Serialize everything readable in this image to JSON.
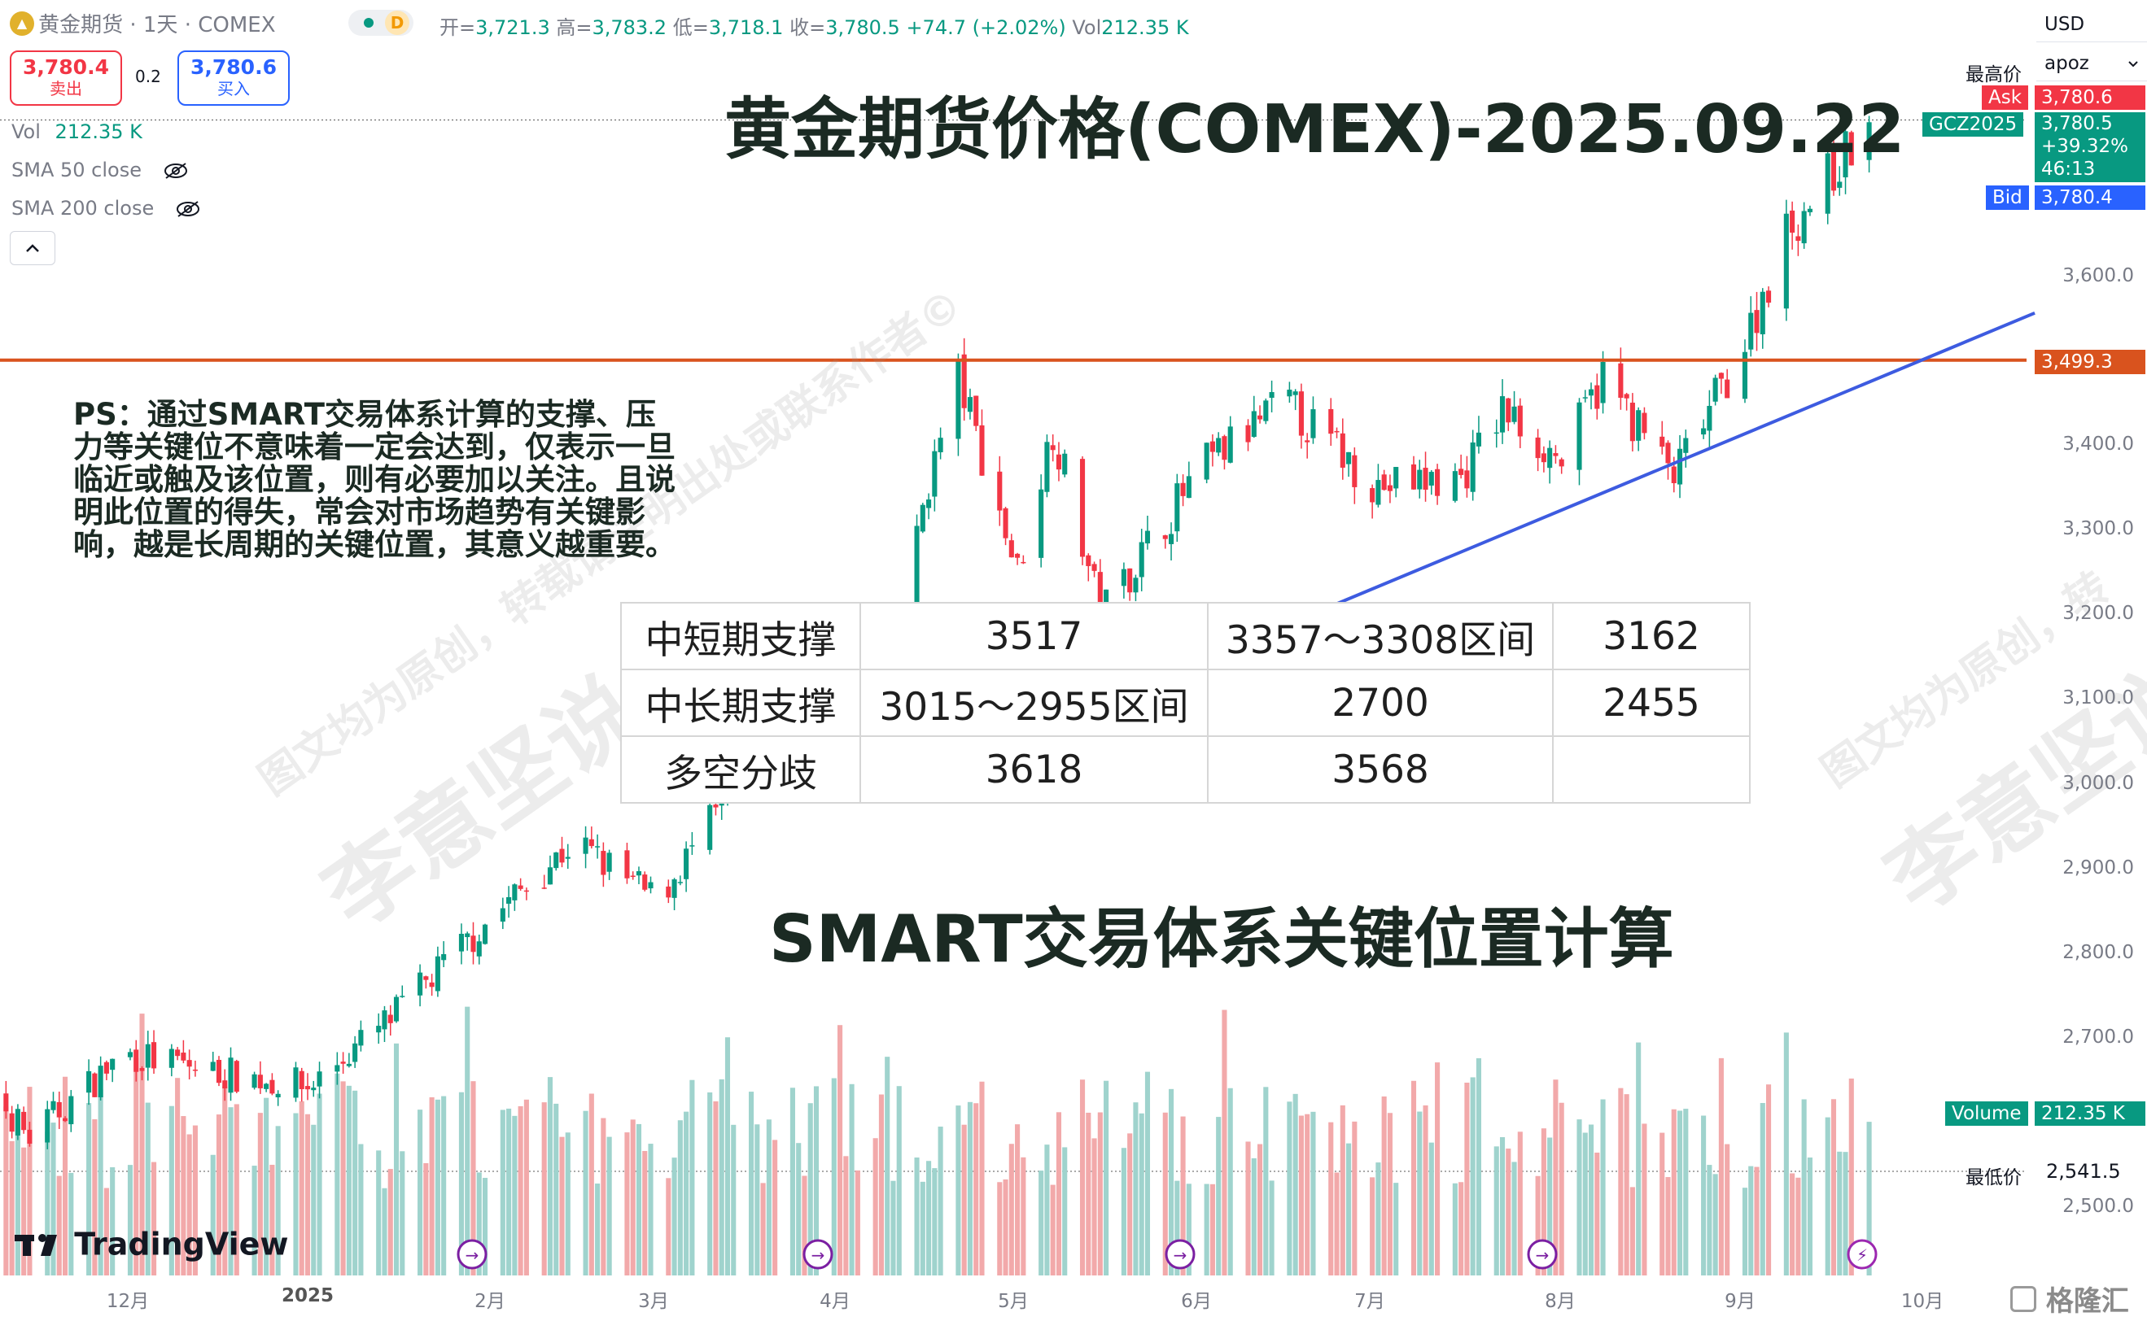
{
  "header": {
    "symbol_name": "黄金期货 · 1天 · COMEX",
    "badge": "D",
    "ohlc": [
      {
        "k": "开=",
        "v": "3,721.3"
      },
      {
        "k": "高=",
        "v": "3,783.2"
      },
      {
        "k": "低=",
        "v": "3,718.1"
      },
      {
        "k": "收=",
        "v": "3,780.5"
      },
      {
        "k": "",
        "v": "+74.7 (+2.02%)"
      },
      {
        "k": "Vol",
        "v": "212.35 K"
      }
    ]
  },
  "trade": {
    "sell_price": "3,780.4",
    "sell_label": "卖出",
    "spread": "0.2",
    "buy_price": "3,780.6",
    "buy_label": "买入"
  },
  "indicators": {
    "vol_label": "Vol",
    "vol_value": "212.35 K",
    "sma50": "SMA 50 close",
    "sma200": "SMA 200 close"
  },
  "top_right": {
    "currency": "USD",
    "account": "apoz"
  },
  "price_tags": {
    "high_label": "最高价",
    "ask_label": "Ask",
    "ask_value": "3,780.6",
    "symbol_tag": "GCZ2025",
    "last_value": "3,780.5",
    "change_pct": "+39.32%",
    "countdown": "46:13",
    "bid_label": "Bid",
    "bid_value": "3,780.4",
    "level_value": "3,499.3",
    "volume_label": "Volume",
    "volume_value": "212.35 K",
    "low_label": "最低价",
    "low_value": "2,541.5"
  },
  "overlay": {
    "title": "黄金期货价格(COMEX)-2025.09.22",
    "subtitle": "SMART交易体系关键位置计算",
    "note": "PS：通过SMART交易体系计算的支撑、压力等关键位不意味着一定会达到，仅表示一旦临近或触及该位置，则有必要加以关注。且说明此位置的得失，常会对市场趋势有关键影响，越是长周期的关键位置，其意义越重要。",
    "table": [
      [
        "中短期支撑",
        "3517",
        "3357～3308区间",
        "3162"
      ],
      [
        "中长期支撑",
        "3015～2955区间",
        "2700",
        "2455"
      ],
      [
        "多空分歧",
        "3618",
        "3568",
        ""
      ]
    ],
    "watermark_a": "图文均为原创，转载请注明出处或联系作者©",
    "watermark_b": "李意坚说",
    "watermark_c": "图文均为原创，转",
    "watermark_d": "李意坚说",
    "logo": "TradingView",
    "corner_logo": "格隆汇"
  },
  "colors": {
    "up": "#089981",
    "down": "#f23645",
    "vol_up": "#9fd3cd",
    "vol_down": "#f2a9aa",
    "level_line": "#d9531e",
    "trend_line": "#3d5be0",
    "blue_tag": "#2962ff"
  },
  "chart_data": {
    "type": "candlestick",
    "y_axis_ticks": [
      "3,600.0",
      "3,400.0",
      "3,300.0",
      "3,200.0",
      "3,100.0",
      "3,000.0",
      "2,900.0",
      "2,800.0",
      "2,700.0",
      "2,500.0"
    ],
    "x_axis_ticks": [
      "12月",
      "2025",
      "2月",
      "3月",
      "4月",
      "5月",
      "6月",
      "7月",
      "8月",
      "9月",
      "10月"
    ],
    "ylim": [
      2430,
      3830
    ],
    "last_price": 3780.5,
    "horizontal_level": 3499.3,
    "trend_line": {
      "from": {
        "date": "2025-04-09",
        "price": 2990
      },
      "to": {
        "date": "2025-10-20",
        "price": 3555
      }
    },
    "anchors": [
      {
        "date": "2024-11-01",
        "close": 2700
      },
      {
        "date": "2024-11-15",
        "close": 2580
      },
      {
        "date": "2024-12-01",
        "close": 2680
      },
      {
        "date": "2024-12-15",
        "close": 2660
      },
      {
        "date": "2025-01-01",
        "close": 2640
      },
      {
        "date": "2025-01-15",
        "close": 2720
      },
      {
        "date": "2025-02-01",
        "close": 2840
      },
      {
        "date": "2025-02-15",
        "close": 2930
      },
      {
        "date": "2025-03-01",
        "close": 2860
      },
      {
        "date": "2025-03-15",
        "close": 3000
      },
      {
        "date": "2025-04-01",
        "close": 3150
      },
      {
        "date": "2025-04-08",
        "close": 3000
      },
      {
        "date": "2025-04-15",
        "close": 3330
      },
      {
        "date": "2025-04-21",
        "close": 3480
      },
      {
        "date": "2025-05-01",
        "close": 3250
      },
      {
        "date": "2025-05-07",
        "close": 3420
      },
      {
        "date": "2025-05-15",
        "close": 3200
      },
      {
        "date": "2025-06-01",
        "close": 3370
      },
      {
        "date": "2025-06-15",
        "close": 3450
      },
      {
        "date": "2025-07-01",
        "close": 3350
      },
      {
        "date": "2025-07-15",
        "close": 3360
      },
      {
        "date": "2025-07-22",
        "close": 3440
      },
      {
        "date": "2025-08-01",
        "close": 3380
      },
      {
        "date": "2025-08-08",
        "close": 3480
      },
      {
        "date": "2025-08-20",
        "close": 3360
      },
      {
        "date": "2025-09-01",
        "close": 3520
      },
      {
        "date": "2025-09-08",
        "close": 3650
      },
      {
        "date": "2025-09-22",
        "close": 3780.5
      }
    ],
    "volume_last": "212.35 K"
  }
}
